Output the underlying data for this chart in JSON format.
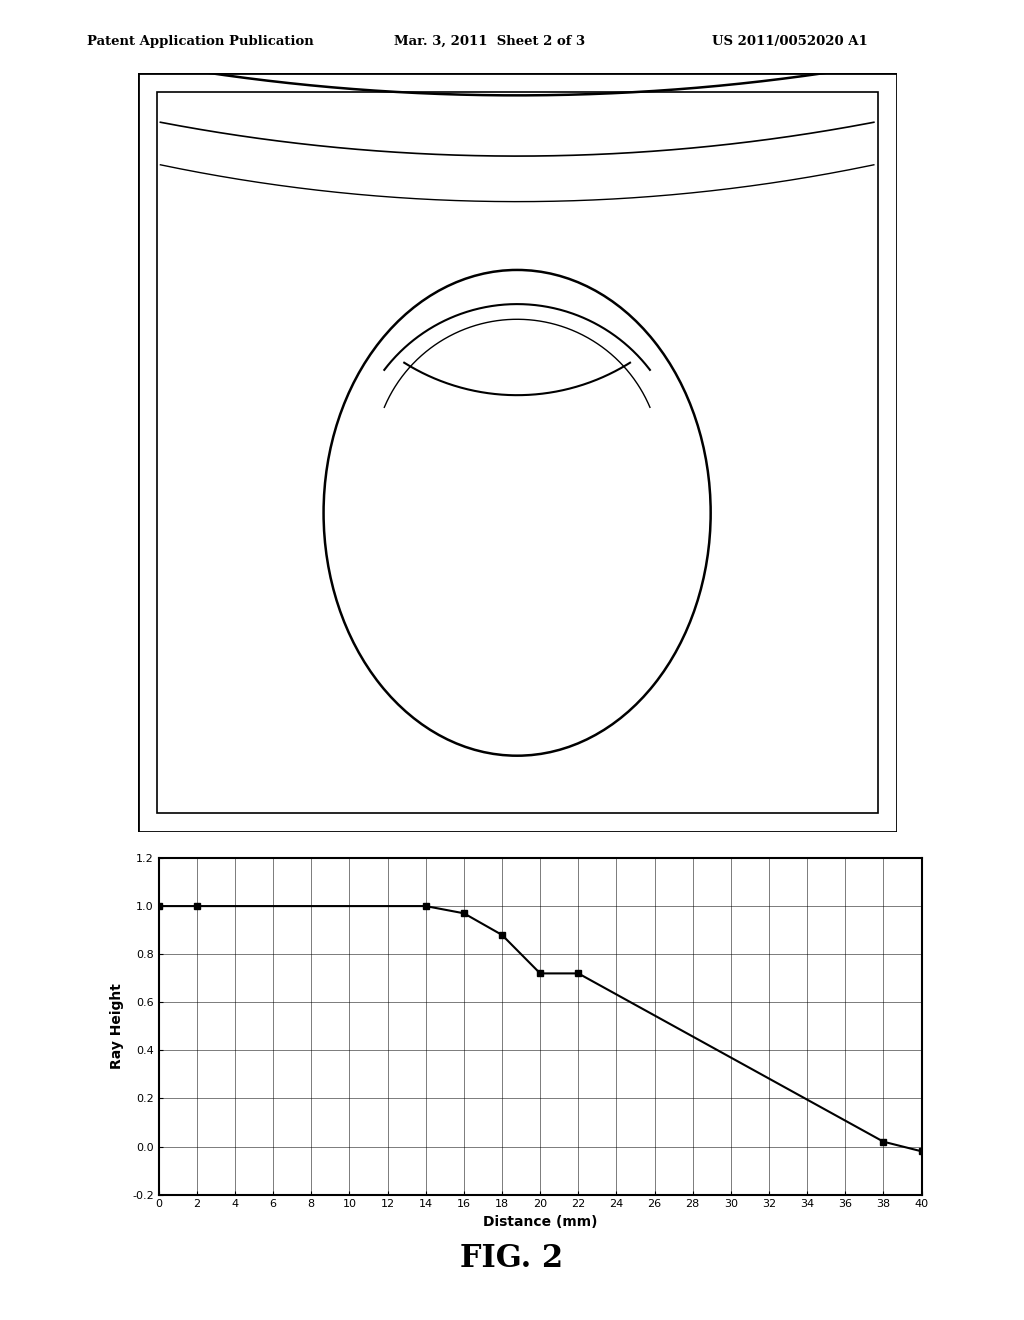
{
  "header_left": "Patent Application Publication",
  "header_mid": "Mar. 3, 2011  Sheet 2 of 3",
  "header_right": "US 2011/0052020 A1",
  "fig_label": "FIG. 2",
  "graph_xlabel": "Distance (mm)",
  "graph_ylabel": "Ray Height",
  "graph_xlim": [
    0,
    40
  ],
  "graph_ylim": [
    -0.2,
    1.2
  ],
  "graph_xticks": [
    0,
    2,
    4,
    6,
    8,
    10,
    12,
    14,
    16,
    18,
    20,
    22,
    24,
    26,
    28,
    30,
    32,
    34,
    36,
    38,
    40
  ],
  "graph_yticks": [
    -0.2,
    0.0,
    0.2,
    0.4,
    0.6,
    0.8,
    1.0,
    1.2
  ],
  "data_x": [
    0,
    2,
    14,
    16,
    18,
    20,
    22,
    38,
    40
  ],
  "data_y": [
    1.0,
    1.0,
    1.0,
    0.97,
    0.88,
    0.72,
    0.72,
    0.02,
    -0.02
  ],
  "line_color": "#000000",
  "marker": "s",
  "bg_color": "#ffffff",
  "text_color": "#000000",
  "frame_outer_lw": 2.0,
  "frame_inner_lw": 1.2,
  "cornea_lw": [
    1.8,
    1.2,
    1.0
  ],
  "lens_lw": 1.8,
  "iol_lw": [
    1.5,
    1.0
  ]
}
